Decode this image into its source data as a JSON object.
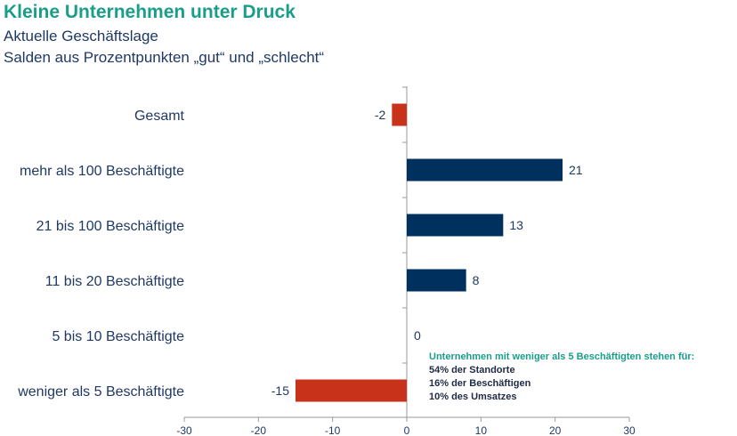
{
  "header": {
    "title": "Kleine Unternehmen unter Druck",
    "subtitle_1": "Aktuelle Geschäftslage",
    "subtitle_2": "Salden aus Prozentpunkten „gut“ und „schlecht“"
  },
  "note": {
    "heading": "Unternehmen mit weniger als 5 Beschäftigten stehen für:",
    "lines": [
      "54% der Standorte",
      "16% der Beschäftigen",
      "10% des Umsatzes"
    ]
  },
  "colors": {
    "positive": "#00305e",
    "negative": "#c8311a",
    "title": "#1a9e8a",
    "text": "#1f3864"
  },
  "chart_data": {
    "type": "bar",
    "orientation": "horizontal",
    "categories": [
      "Gesamt",
      "mehr als 100 Beschäftigte",
      "21 bis 100 Beschäftigte",
      "11 bis 20 Beschäftigte",
      "5 bis 10 Beschäftigte",
      "weniger als 5 Beschäftigte"
    ],
    "values": [
      -2,
      21,
      13,
      8,
      0,
      -15
    ],
    "data_labels": [
      "-2",
      "21",
      "13",
      "8",
      "0",
      "-15"
    ],
    "xlim": [
      -30,
      30
    ],
    "xticks": [
      -30,
      -20,
      -10,
      0,
      10,
      20,
      30
    ],
    "xlabel": "",
    "ylabel": "",
    "grid": false,
    "legend": "none"
  }
}
